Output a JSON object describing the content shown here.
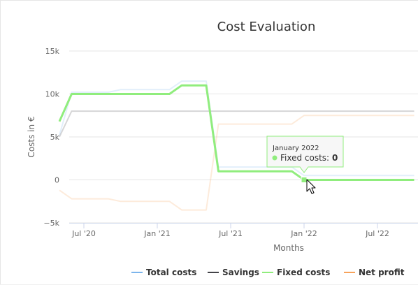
{
  "chart_data": {
    "type": "line",
    "title": "Cost Evaluation",
    "xlabel": "Months",
    "ylabel": "Costs in €",
    "ylim": [
      -5000,
      15000
    ],
    "yticks": [
      {
        "value": 15000,
        "label": "15k"
      },
      {
        "value": 10000,
        "label": "10k"
      },
      {
        "value": 5000,
        "label": "5k"
      },
      {
        "value": 0,
        "label": "0"
      },
      {
        "value": -5000,
        "label": "−5k"
      }
    ],
    "xticks": [
      {
        "date": "2020-07",
        "label": "Jul '20"
      },
      {
        "date": "2021-01",
        "label": "Jan '21"
      },
      {
        "date": "2021-07",
        "label": "Jul '21"
      },
      {
        "date": "2022-01",
        "label": "Jan '22"
      },
      {
        "date": "2022-07",
        "label": "Jul '22"
      }
    ],
    "series": [
      {
        "name": "Total costs",
        "color": "#7cb5ec",
        "highlighted": false,
        "points": [
          [
            "2020-05",
            5200
          ],
          [
            "2020-06",
            10200
          ],
          [
            "2020-07",
            10200
          ],
          [
            "2020-08",
            10200
          ],
          [
            "2020-09",
            10200
          ],
          [
            "2020-10",
            10500
          ],
          [
            "2020-11",
            10500
          ],
          [
            "2020-12",
            10500
          ],
          [
            "2021-01",
            10500
          ],
          [
            "2021-02",
            10500
          ],
          [
            "2021-03",
            11500
          ],
          [
            "2021-04",
            11500
          ],
          [
            "2021-05",
            11500
          ],
          [
            "2021-06",
            1500
          ],
          [
            "2021-07",
            1500
          ],
          [
            "2021-08",
            1500
          ],
          [
            "2021-09",
            1500
          ],
          [
            "2021-10",
            1500
          ],
          [
            "2021-11",
            1500
          ],
          [
            "2021-12",
            1500
          ],
          [
            "2022-01",
            500
          ],
          [
            "2022-02",
            500
          ],
          [
            "2022-03",
            500
          ],
          [
            "2022-04",
            500
          ],
          [
            "2022-05",
            500
          ],
          [
            "2022-06",
            500
          ],
          [
            "2022-07",
            500
          ],
          [
            "2022-08",
            500
          ],
          [
            "2022-09",
            500
          ],
          [
            "2022-10",
            500
          ]
        ]
      },
      {
        "name": "Savings",
        "color": "#434348",
        "highlighted": false,
        "points": [
          [
            "2020-05",
            5000
          ],
          [
            "2020-06",
            8000
          ],
          [
            "2020-07",
            8000
          ],
          [
            "2020-08",
            8000
          ],
          [
            "2020-09",
            8000
          ],
          [
            "2020-10",
            8000
          ],
          [
            "2020-11",
            8000
          ],
          [
            "2020-12",
            8000
          ],
          [
            "2021-01",
            8000
          ],
          [
            "2021-02",
            8000
          ],
          [
            "2021-03",
            8000
          ],
          [
            "2021-04",
            8000
          ],
          [
            "2021-05",
            8000
          ],
          [
            "2021-06",
            8000
          ],
          [
            "2021-07",
            8000
          ],
          [
            "2021-08",
            8000
          ],
          [
            "2021-09",
            8000
          ],
          [
            "2021-10",
            8000
          ],
          [
            "2021-11",
            8000
          ],
          [
            "2021-12",
            8000
          ],
          [
            "2022-01",
            8000
          ],
          [
            "2022-02",
            8000
          ],
          [
            "2022-03",
            8000
          ],
          [
            "2022-04",
            8000
          ],
          [
            "2022-05",
            8000
          ],
          [
            "2022-06",
            8000
          ],
          [
            "2022-07",
            8000
          ],
          [
            "2022-08",
            8000
          ],
          [
            "2022-09",
            8000
          ],
          [
            "2022-10",
            8000
          ]
        ]
      },
      {
        "name": "Fixed costs",
        "color": "#90ed7d",
        "highlighted": true,
        "points": [
          [
            "2020-05",
            6800
          ],
          [
            "2020-06",
            10000
          ],
          [
            "2020-07",
            10000
          ],
          [
            "2020-08",
            10000
          ],
          [
            "2020-09",
            10000
          ],
          [
            "2020-10",
            10000
          ],
          [
            "2020-11",
            10000
          ],
          [
            "2020-12",
            10000
          ],
          [
            "2021-01",
            10000
          ],
          [
            "2021-02",
            10000
          ],
          [
            "2021-03",
            11000
          ],
          [
            "2021-04",
            11000
          ],
          [
            "2021-05",
            11000
          ],
          [
            "2021-06",
            1000
          ],
          [
            "2021-07",
            1000
          ],
          [
            "2021-08",
            1000
          ],
          [
            "2021-09",
            1000
          ],
          [
            "2021-10",
            1000
          ],
          [
            "2021-11",
            1000
          ],
          [
            "2021-12",
            1000
          ],
          [
            "2022-01",
            0
          ],
          [
            "2022-02",
            0
          ],
          [
            "2022-03",
            0
          ],
          [
            "2022-04",
            0
          ],
          [
            "2022-05",
            0
          ],
          [
            "2022-06",
            0
          ],
          [
            "2022-07",
            0
          ],
          [
            "2022-08",
            0
          ],
          [
            "2022-09",
            0
          ],
          [
            "2022-10",
            0
          ]
        ]
      },
      {
        "name": "Net profit",
        "color": "#f7a35c",
        "highlighted": false,
        "points": [
          [
            "2020-05",
            -1200
          ],
          [
            "2020-06",
            -2200
          ],
          [
            "2020-07",
            -2200
          ],
          [
            "2020-08",
            -2200
          ],
          [
            "2020-09",
            -2200
          ],
          [
            "2020-10",
            -2500
          ],
          [
            "2020-11",
            -2500
          ],
          [
            "2020-12",
            -2500
          ],
          [
            "2021-01",
            -2500
          ],
          [
            "2021-02",
            -2500
          ],
          [
            "2021-03",
            -3500
          ],
          [
            "2021-04",
            -3500
          ],
          [
            "2021-05",
            -3500
          ],
          [
            "2021-06",
            6500
          ],
          [
            "2021-07",
            6500
          ],
          [
            "2021-08",
            6500
          ],
          [
            "2021-09",
            6500
          ],
          [
            "2021-10",
            6500
          ],
          [
            "2021-11",
            6500
          ],
          [
            "2021-12",
            6500
          ],
          [
            "2022-01",
            7500
          ],
          [
            "2022-02",
            7500
          ],
          [
            "2022-03",
            7500
          ],
          [
            "2022-04",
            7500
          ],
          [
            "2022-05",
            7500
          ],
          [
            "2022-06",
            7500
          ],
          [
            "2022-07",
            7500
          ],
          [
            "2022-08",
            7500
          ],
          [
            "2022-09",
            7500
          ],
          [
            "2022-10",
            7500
          ]
        ]
      }
    ],
    "legend": {
      "position": "bottom-right",
      "items": [
        "Total costs",
        "Savings",
        "Fixed costs",
        "Net profit"
      ]
    },
    "tooltip": {
      "header": "January 2022",
      "series": "Fixed costs",
      "label": "Fixed costs: ",
      "value": "0",
      "date": "2022-01"
    }
  }
}
